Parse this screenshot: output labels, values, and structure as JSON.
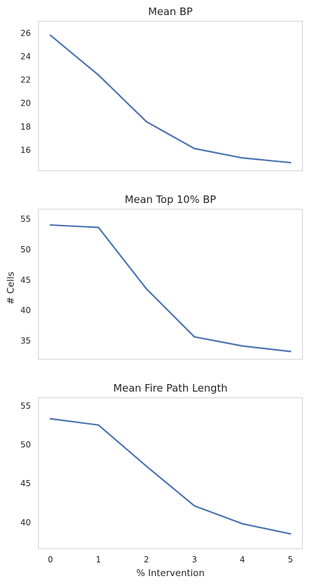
{
  "figure": {
    "xlabel": "% Intervention",
    "ylabel": "# Cells"
  },
  "colors": {
    "line": "#4c72b0",
    "frame": "#cccccc",
    "text": "#262626"
  },
  "chart_data": [
    {
      "type": "line",
      "title": "Mean BP",
      "x": [
        0,
        1,
        2,
        3,
        4,
        5
      ],
      "y": [
        25.8,
        22.4,
        18.4,
        16.1,
        15.3,
        14.9
      ],
      "xlim": [
        -0.25,
        5.25
      ],
      "ylim": [
        14.2,
        27.0
      ],
      "yticks": [
        16,
        18,
        20,
        22,
        24,
        26
      ],
      "xticks": [],
      "grid": false,
      "legend": "none"
    },
    {
      "type": "line",
      "title": "Mean Top 10% BP",
      "x": [
        0,
        1,
        2,
        3,
        4,
        5
      ],
      "y": [
        54.0,
        53.6,
        43.5,
        35.6,
        34.1,
        33.2
      ],
      "xlim": [
        -0.25,
        5.25
      ],
      "ylim": [
        31.9,
        56.6
      ],
      "yticks": [
        35,
        40,
        45,
        50,
        55
      ],
      "xticks": [],
      "grid": false,
      "legend": "none"
    },
    {
      "type": "line",
      "title": "Mean Fire Path Length",
      "x": [
        0,
        1,
        2,
        3,
        4,
        5
      ],
      "y": [
        53.3,
        52.5,
        47.2,
        42.1,
        39.8,
        38.5
      ],
      "xlim": [
        -0.25,
        5.25
      ],
      "ylim": [
        36.6,
        56.0
      ],
      "yticks": [
        40,
        45,
        50,
        55
      ],
      "xticks": [
        0,
        1,
        2,
        3,
        4,
        5
      ],
      "grid": false,
      "legend": "none"
    }
  ]
}
